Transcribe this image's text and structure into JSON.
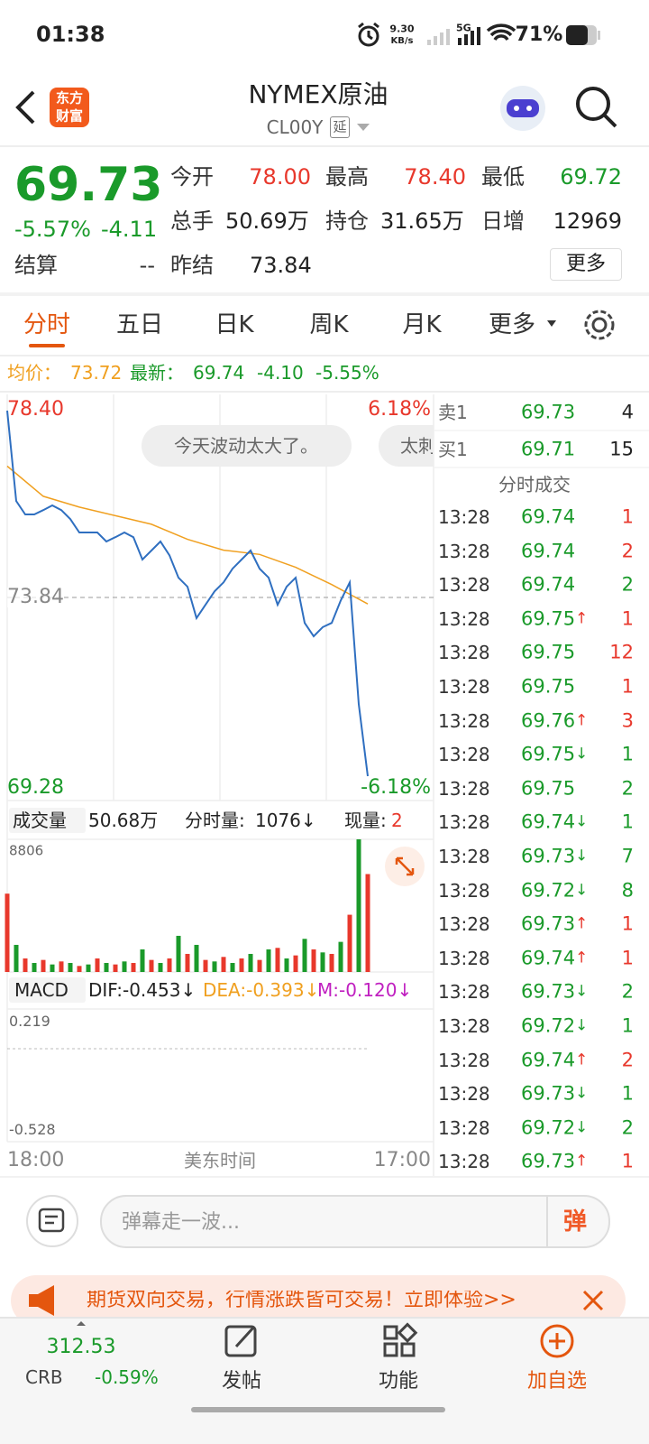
{
  "status_bar": {
    "time": "01:38",
    "net_speed": "9.30",
    "net_unit": "KB/s",
    "signal": "5G",
    "battery": "71%"
  },
  "header": {
    "logo_lines": [
      "东方",
      "财富"
    ],
    "title": "NYMEX原油",
    "code": "CL00Y",
    "delay_tag": "延"
  },
  "quote": {
    "price": "69.73",
    "change_pct": "-5.57%",
    "change": "-4.11",
    "settle_label": "结算",
    "settle": "--",
    "fields": [
      {
        "label": "今开",
        "value": "78.00",
        "tone": "up"
      },
      {
        "label": "最高",
        "value": "78.40",
        "tone": "up"
      },
      {
        "label": "最低",
        "value": "69.72",
        "tone": "down"
      },
      {
        "label": "总手",
        "value": "50.69万",
        "tone": "flat"
      },
      {
        "label": "持仓",
        "value": "31.65万",
        "tone": "flat"
      },
      {
        "label": "日增",
        "value": "12969",
        "tone": "flat"
      },
      {
        "label": "昨结",
        "value": "73.84",
        "tone": "flat"
      }
    ],
    "more": "更多"
  },
  "tabs": [
    "分时",
    "五日",
    "日K",
    "周K",
    "月K",
    "更多"
  ],
  "active_tab": 0,
  "info_bar": {
    "avg_label": "均价：",
    "avg": "73.72",
    "last_label": "最新：",
    "last": "69.74",
    "change": "-4.10",
    "change_pct": "-5.55%"
  },
  "price_chart": {
    "top": "78.40",
    "top_pct": "6.18%",
    "mid": "73.84",
    "bottom": "69.28",
    "bottom_pct": "-6.18%",
    "prices": [
      78.19,
      76.09,
      75.78,
      75.78,
      75.88,
      75.99,
      75.88,
      75.67,
      75.36,
      75.36,
      75.36,
      75.15,
      75.25,
      75.36,
      75.25,
      74.73,
      74.94,
      75.15,
      74.83,
      74.31,
      74.1,
      73.37,
      73.68,
      73.99,
      74.2,
      74.52,
      74.73,
      74.94,
      74.52,
      74.31,
      73.68,
      74.1,
      74.31,
      73.26,
      72.95,
      73.16,
      73.26,
      73.78,
      74.2,
      71.37,
      69.7
    ],
    "avg_prices": [
      76.9,
      76.2,
      75.95,
      75.75,
      75.55,
      75.2,
      74.95,
      74.85,
      74.55,
      74.15,
      73.7
    ],
    "bubbles": [
      "今天波动太大了。",
      "太刺"
    ]
  },
  "volume": {
    "label": "成交量",
    "total": "50.68万",
    "minute_label": "分时量:",
    "minute": "1076↓",
    "current_label": "现量:",
    "current": "2",
    "max": "8806",
    "bars": [
      5200,
      1800,
      900,
      600,
      800,
      500,
      700,
      600,
      400,
      500,
      900,
      600,
      500,
      700,
      600,
      1500,
      800,
      600,
      900,
      2400,
      1200,
      1800,
      800,
      700,
      1000,
      600,
      900,
      1200,
      800,
      1500,
      1600,
      900,
      1100,
      2200,
      1500,
      1300,
      1200,
      2000,
      3800,
      8806,
      6500
    ]
  },
  "macd": {
    "label": "MACD",
    "dif": "DIF:-0.453↓",
    "dea": "DEA:-0.393↓",
    "m": "M:-0.120↓",
    "top": "0.219",
    "bottom": "-0.528"
  },
  "time_axis": {
    "start": "18:00",
    "zone": "美东时间",
    "end": "17:00"
  },
  "order_book": [
    {
      "side": "卖1",
      "price": "69.73",
      "volume": "4"
    },
    {
      "side": "买1",
      "price": "69.71",
      "volume": "15"
    }
  ],
  "trades_title": "分时成交",
  "trades": [
    {
      "time": "13:28",
      "price": "69.74",
      "arrow": null,
      "volume": "1",
      "tone": "up"
    },
    {
      "time": "13:28",
      "price": "69.74",
      "arrow": null,
      "volume": "2",
      "tone": "up"
    },
    {
      "time": "13:28",
      "price": "69.74",
      "arrow": null,
      "volume": "2",
      "tone": "down"
    },
    {
      "time": "13:28",
      "price": "69.75",
      "arrow": "↑",
      "volume": "1",
      "tone": "up"
    },
    {
      "time": "13:28",
      "price": "69.75",
      "arrow": null,
      "volume": "12",
      "tone": "up"
    },
    {
      "time": "13:28",
      "price": "69.75",
      "arrow": null,
      "volume": "1",
      "tone": "up"
    },
    {
      "time": "13:28",
      "price": "69.76",
      "arrow": "↑",
      "volume": "3",
      "tone": "up"
    },
    {
      "time": "13:28",
      "price": "69.75",
      "arrow": "↓",
      "volume": "1",
      "tone": "down"
    },
    {
      "time": "13:28",
      "price": "69.75",
      "arrow": null,
      "volume": "2",
      "tone": "down"
    },
    {
      "time": "13:28",
      "price": "69.74",
      "arrow": "↓",
      "volume": "1",
      "tone": "down"
    },
    {
      "time": "13:28",
      "price": "69.73",
      "arrow": "↓",
      "volume": "7",
      "tone": "down"
    },
    {
      "time": "13:28",
      "price": "69.72",
      "arrow": "↓",
      "volume": "8",
      "tone": "down"
    },
    {
      "time": "13:28",
      "price": "69.73",
      "arrow": "↑",
      "volume": "1",
      "tone": "up"
    },
    {
      "time": "13:28",
      "price": "69.74",
      "arrow": "↑",
      "volume": "1",
      "tone": "up"
    },
    {
      "time": "13:28",
      "price": "69.73",
      "arrow": "↓",
      "volume": "2",
      "tone": "down"
    },
    {
      "time": "13:28",
      "price": "69.72",
      "arrow": "↓",
      "volume": "1",
      "tone": "down"
    },
    {
      "time": "13:28",
      "price": "69.74",
      "arrow": "↑",
      "volume": "2",
      "tone": "up"
    },
    {
      "time": "13:28",
      "price": "69.73",
      "arrow": "↓",
      "volume": "1",
      "tone": "down"
    },
    {
      "time": "13:28",
      "price": "69.72",
      "arrow": "↓",
      "volume": "2",
      "tone": "down"
    },
    {
      "time": "13:28",
      "price": "69.73",
      "arrow": "↑",
      "volume": "1",
      "tone": "up"
    }
  ],
  "comment": {
    "placeholder": "弹幕走一波...",
    "button": "弹"
  },
  "banner": {
    "text": "期货双向交易，行情涨跌皆可交易！立即体验>>"
  },
  "bottom_nav": {
    "index_value": "312.53",
    "index_name": "CRB",
    "index_change": "-0.59%",
    "items": [
      "发帖",
      "功能",
      "加自选"
    ]
  }
}
